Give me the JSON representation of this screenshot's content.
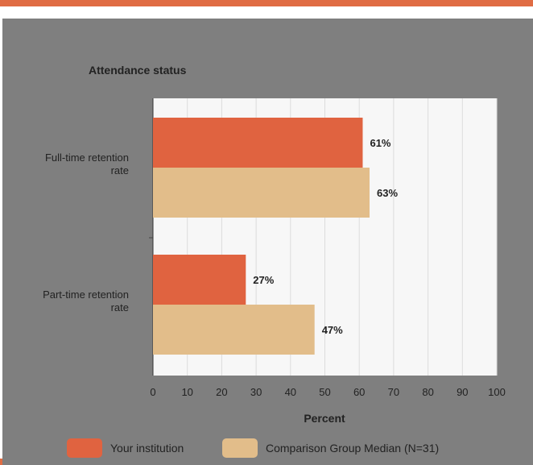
{
  "chart_data": {
    "type": "bar",
    "orientation": "horizontal",
    "title": "Attendance status",
    "xlabel": "Percent",
    "ylabel": "",
    "xlim": [
      0,
      100
    ],
    "xticks": [
      "0",
      "10",
      "20",
      "30",
      "40",
      "50",
      "60",
      "70",
      "80",
      "90",
      "100"
    ],
    "categories": [
      "Full-time retention rate",
      "Part-time retention rate"
    ],
    "category_lines": [
      [
        "Full-time retention",
        "rate"
      ],
      [
        "Part-time retention",
        "rate"
      ]
    ],
    "series": [
      {
        "name": "Your institution",
        "values": [
          61,
          27
        ],
        "labels": [
          "61%",
          "27%"
        ],
        "color": "#e06340"
      },
      {
        "name": "Comparison Group Median (N=31)",
        "values": [
          63,
          47
        ],
        "labels": [
          "63%",
          "47%"
        ],
        "color": "#e2bd8a"
      }
    ],
    "grid": true,
    "legend_position": "bottom",
    "background_color": "#7f7f7f",
    "plot_background": "#f7f7f7"
  }
}
